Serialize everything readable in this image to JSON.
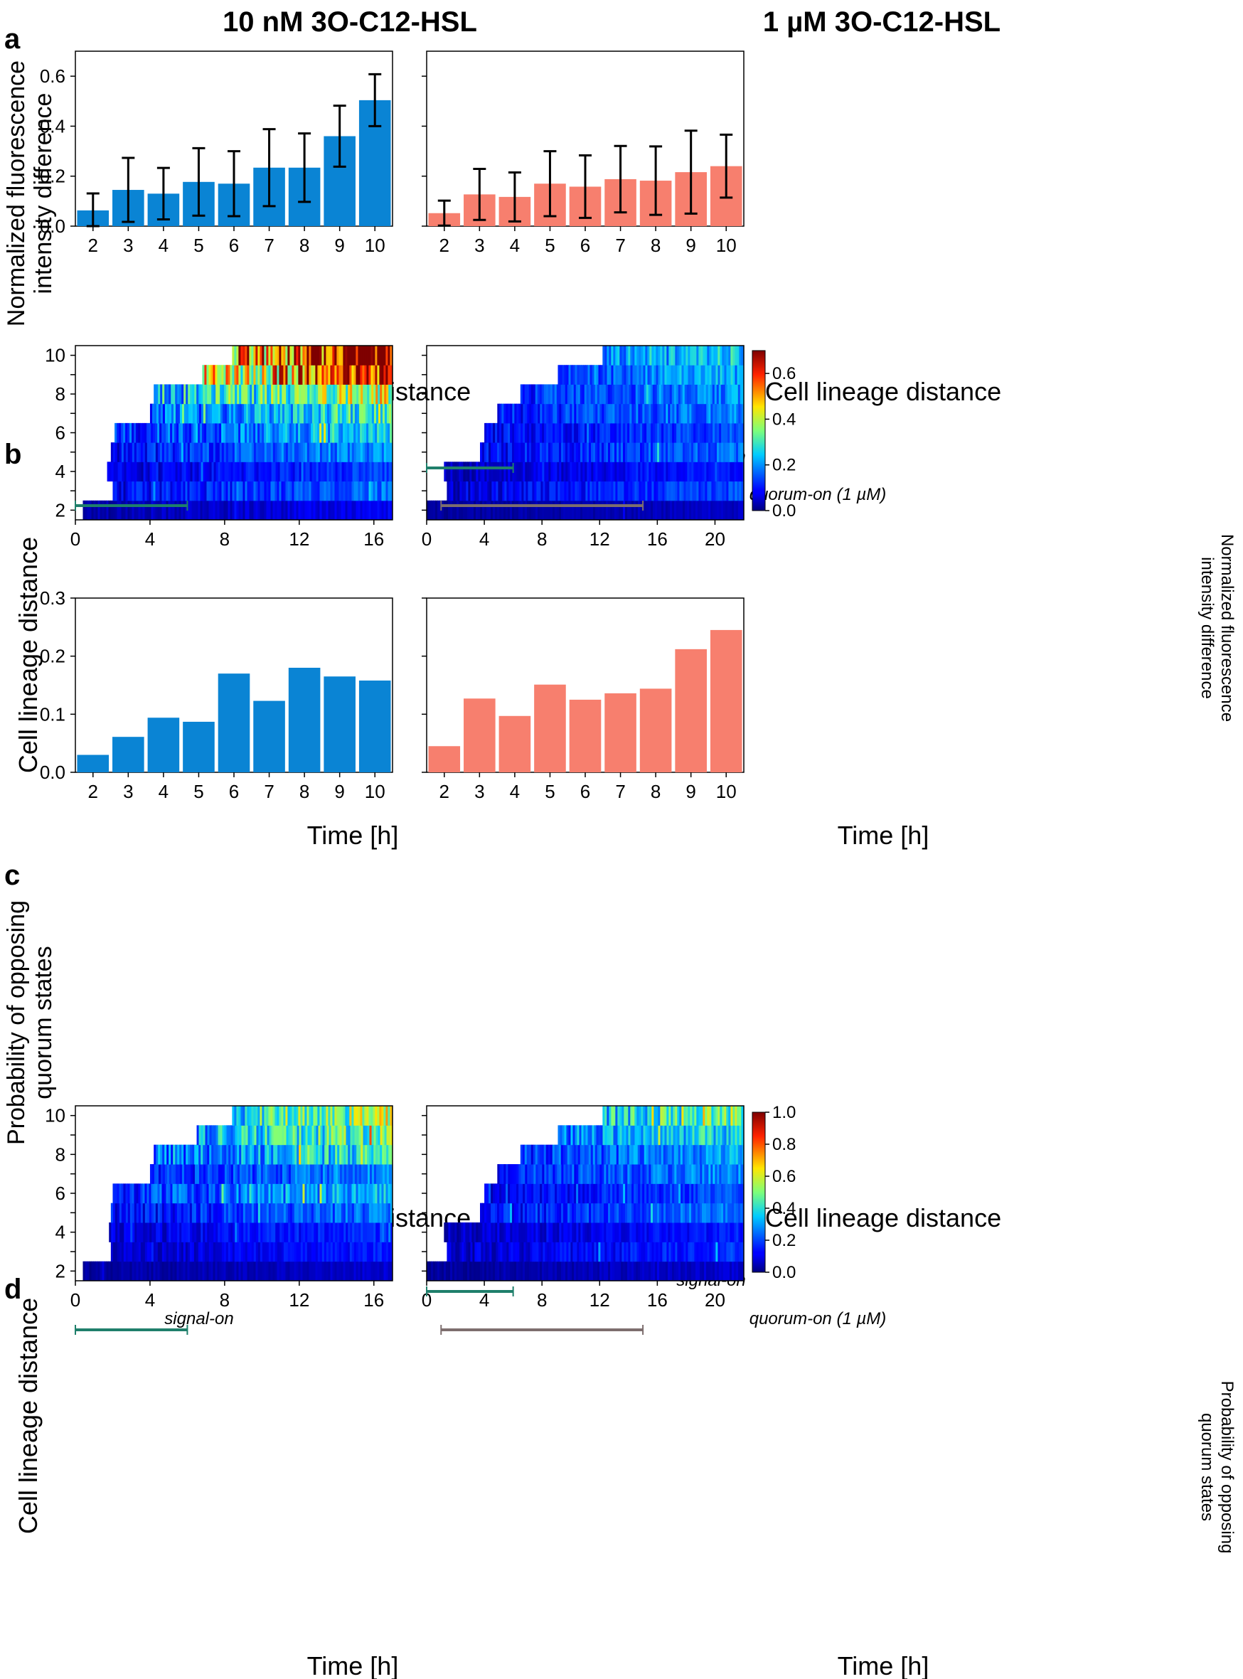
{
  "figure": {
    "title_left": "10 nM 3O-C12-HSL",
    "title_right": "1 µM 3O-C12-HSL",
    "panel_letters": [
      "a",
      "b",
      "c",
      "d"
    ]
  },
  "colors": {
    "blue": "#0A84D4",
    "salmon": "#F77F6E",
    "signal_bar": "#1F7F6B",
    "quorum_bar": "#7D6E6E"
  },
  "colorbars": {
    "b": {
      "label_line1": "Normalized fluorescence",
      "label_line2": "intensity difference",
      "ticks": [
        "0.0",
        "0.2",
        "0.4",
        "0.6"
      ],
      "range": [
        0,
        0.7
      ]
    },
    "d": {
      "label_line1": "Probability of opposing",
      "label_line2": "quorum states",
      "ticks": [
        "0.0",
        "0.2",
        "0.4",
        "0.6",
        "0.8",
        "1.0"
      ],
      "range": [
        0,
        1.0
      ]
    }
  },
  "annotations": {
    "signal_on": "signal-on",
    "quorum_on": "quorum-on (1 µM)",
    "signal_on_hours": [
      0,
      6
    ],
    "quorum_on_hours": [
      1,
      15
    ]
  },
  "chart_data": [
    {
      "id": "a-left",
      "type": "bar",
      "categories": [
        "2",
        "3",
        "4",
        "5",
        "6",
        "7",
        "8",
        "9",
        "10"
      ],
      "values": [
        0.063,
        0.145,
        0.13,
        0.177,
        0.17,
        0.234,
        0.234,
        0.36,
        0.504
      ],
      "errors": [
        0.068,
        0.128,
        0.103,
        0.135,
        0.13,
        0.154,
        0.137,
        0.122,
        0.104
      ],
      "ylabel_line1": "Normalized fluorescence",
      "ylabel_line2": "intensity difference",
      "xlabel": "Cell lineage distance",
      "ylim": [
        0,
        0.7
      ],
      "yticks": [
        0.0,
        0.2,
        0.4,
        0.6
      ],
      "ytick_labels": [
        "0.0",
        "0.2",
        "0.4",
        "0.6"
      ]
    },
    {
      "id": "a-right",
      "type": "bar",
      "categories": [
        "2",
        "3",
        "4",
        "5",
        "6",
        "7",
        "8",
        "9",
        "10"
      ],
      "values": [
        0.052,
        0.127,
        0.117,
        0.17,
        0.158,
        0.188,
        0.182,
        0.216,
        0.24
      ],
      "errors": [
        0.05,
        0.102,
        0.098,
        0.13,
        0.125,
        0.133,
        0.137,
        0.166,
        0.126
      ],
      "xlabel": "Cell lineage distance",
      "ylim": [
        0,
        0.7
      ],
      "yticks": [
        0.0,
        0.2,
        0.4,
        0.6
      ]
    },
    {
      "id": "b-left",
      "type": "heatmap",
      "ylabel": "Cell lineage distance",
      "xlabel": "Time [h]",
      "xlim": [
        0,
        17
      ],
      "xticks": [
        0,
        4,
        8,
        12,
        16
      ],
      "xtick_labels": [
        "0",
        "4",
        "8",
        "12",
        "16"
      ],
      "rows": [
        2,
        3,
        4,
        5,
        6,
        7,
        8,
        9,
        10
      ],
      "ytick_labels": [
        "2",
        "4",
        "6",
        "8",
        "10"
      ],
      "row_start_hours": [
        0.4,
        2.0,
        1.7,
        1.9,
        2.1,
        4.0,
        4.2,
        6.8,
        8.4
      ],
      "row_mean_values": [
        0.05,
        0.12,
        0.09,
        0.14,
        0.18,
        0.22,
        0.3,
        0.45,
        0.55
      ]
    },
    {
      "id": "b-right",
      "type": "heatmap",
      "xlabel": "Time [h]",
      "xlim": [
        0,
        22
      ],
      "xticks": [
        0,
        4,
        8,
        12,
        16,
        20
      ],
      "xtick_labels": [
        "0",
        "4",
        "8",
        "12",
        "16",
        "20"
      ],
      "rows": [
        2,
        3,
        4,
        5,
        6,
        7,
        8,
        9,
        10
      ],
      "row_start_hours": [
        0.0,
        1.4,
        1.2,
        3.7,
        4.0,
        4.9,
        6.5,
        9.1,
        12.2
      ],
      "row_mean_values": [
        0.03,
        0.1,
        0.07,
        0.12,
        0.1,
        0.13,
        0.14,
        0.16,
        0.18
      ]
    },
    {
      "id": "c-left",
      "type": "bar",
      "categories": [
        "2",
        "3",
        "4",
        "5",
        "6",
        "7",
        "8",
        "9",
        "10"
      ],
      "values": [
        0.03,
        0.061,
        0.094,
        0.087,
        0.17,
        0.123,
        0.18,
        0.165,
        0.158
      ],
      "ylabel_line1": "Probability of opposing",
      "ylabel_line2": "quorum states",
      "xlabel": "Cell lineage distance",
      "ylim": [
        0,
        0.3
      ],
      "yticks": [
        0.0,
        0.1,
        0.2,
        0.3
      ],
      "ytick_labels": [
        "0.0",
        "0.1",
        "0.2",
        "0.3"
      ]
    },
    {
      "id": "c-right",
      "type": "bar",
      "categories": [
        "2",
        "3",
        "4",
        "5",
        "6",
        "7",
        "8",
        "9",
        "10"
      ],
      "values": [
        0.045,
        0.127,
        0.097,
        0.151,
        0.125,
        0.136,
        0.144,
        0.212,
        0.245
      ],
      "xlabel": "Cell lineage distance",
      "ylim": [
        0,
        0.3
      ],
      "yticks": [
        0.0,
        0.1,
        0.2,
        0.3
      ]
    },
    {
      "id": "d-left",
      "type": "heatmap",
      "ylabel": "Cell lineage distance",
      "xlabel": "Time [h]",
      "xlim": [
        0,
        17
      ],
      "xticks": [
        0,
        4,
        8,
        12,
        16
      ],
      "xtick_labels": [
        "0",
        "4",
        "8",
        "12",
        "16"
      ],
      "rows": [
        2,
        3,
        4,
        5,
        6,
        7,
        8,
        9,
        10
      ],
      "ytick_labels": [
        "2",
        "4",
        "6",
        "8",
        "10"
      ],
      "row_start_hours": [
        0.4,
        1.9,
        1.8,
        1.9,
        2.0,
        4.0,
        4.2,
        6.5,
        8.4
      ],
      "row_mean_values": [
        0.05,
        0.1,
        0.12,
        0.18,
        0.25,
        0.2,
        0.3,
        0.35,
        0.4
      ]
    },
    {
      "id": "d-right",
      "type": "heatmap",
      "xlabel": "Time [h]",
      "xlim": [
        0,
        22
      ],
      "xticks": [
        0,
        4,
        8,
        12,
        16,
        20
      ],
      "xtick_labels": [
        "0",
        "4",
        "8",
        "12",
        "16",
        "20"
      ],
      "rows": [
        2,
        3,
        4,
        5,
        6,
        7,
        8,
        9,
        10
      ],
      "row_start_hours": [
        0.0,
        1.4,
        1.2,
        3.7,
        4.0,
        4.9,
        6.5,
        9.1,
        12.2
      ],
      "row_mean_values": [
        0.05,
        0.12,
        0.1,
        0.18,
        0.14,
        0.2,
        0.22,
        0.28,
        0.35
      ]
    }
  ]
}
